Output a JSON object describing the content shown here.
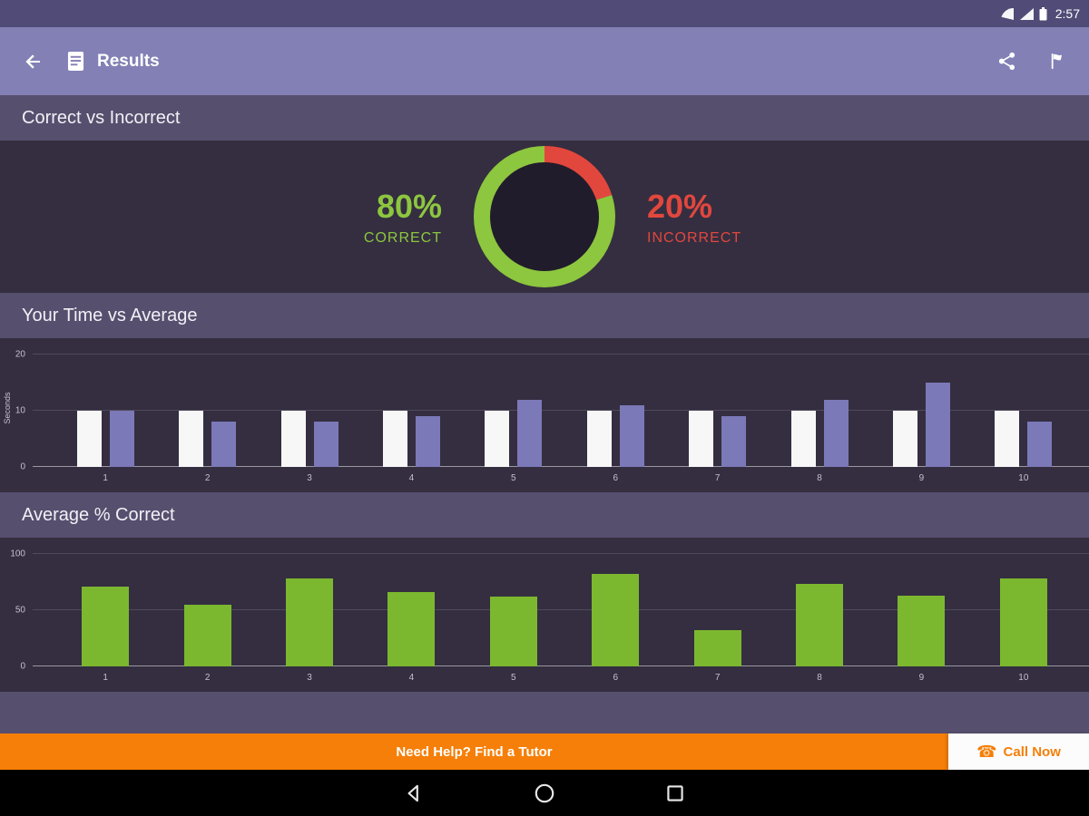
{
  "status_bar": {
    "time": "2:57"
  },
  "app_bar": {
    "title": "Results"
  },
  "footer": {
    "tutor": "Need Help? Find a Tutor",
    "call": "Call Now",
    "call_icon": "☎"
  },
  "colors": {
    "app_bar": "#8280b5",
    "status_bar": "#504c77",
    "section_header": "#574f6e",
    "chart_background": "#342e40",
    "correct_green": "#8dc63f",
    "incorrect_red": "#e2473e",
    "bar_green": "#7cb82f",
    "bar_purple": "#7b79b8",
    "bar_white": "#f7f7f7",
    "banner_orange": "#f57f08"
  },
  "chart_data": [
    {
      "type": "pie",
      "title": "Correct vs Incorrect",
      "labels": [
        "CORRECT",
        "INCORRECT"
      ],
      "values": [
        80,
        20
      ],
      "display": [
        "80%",
        "20%"
      ],
      "colors": [
        "#8dc63f",
        "#e2473e"
      ],
      "style": "donut",
      "legend": "sides"
    },
    {
      "type": "bar",
      "title": "Your Time vs Average",
      "categories": [
        "1",
        "2",
        "3",
        "4",
        "5",
        "6",
        "7",
        "8",
        "9",
        "10"
      ],
      "series": [
        {
          "name": "Your Time",
          "color": "#f7f7f7",
          "values": [
            10,
            10,
            10,
            10,
            10,
            10,
            10,
            10,
            10,
            10
          ]
        },
        {
          "name": "Average",
          "color": "#7b79b8",
          "values": [
            10,
            8,
            8,
            9,
            12,
            11,
            9,
            12,
            15,
            8
          ]
        }
      ],
      "xlabel": "",
      "ylabel": "Seconds",
      "ylim": [
        0,
        20
      ],
      "yticks": [
        0,
        10,
        20
      ],
      "grid": true,
      "legend": "none"
    },
    {
      "type": "bar",
      "title": "Average % Correct",
      "categories": [
        "1",
        "2",
        "3",
        "4",
        "5",
        "6",
        "7",
        "8",
        "9",
        "10"
      ],
      "series": [
        {
          "name": "Average % Correct",
          "color": "#7cb82f",
          "values": [
            71,
            55,
            78,
            66,
            62,
            82,
            32,
            73,
            63,
            78
          ]
        }
      ],
      "xlabel": "",
      "ylabel": "",
      "ylim": [
        0,
        100
      ],
      "yticks": [
        0,
        50,
        100
      ],
      "grid": true,
      "legend": "none"
    }
  ]
}
